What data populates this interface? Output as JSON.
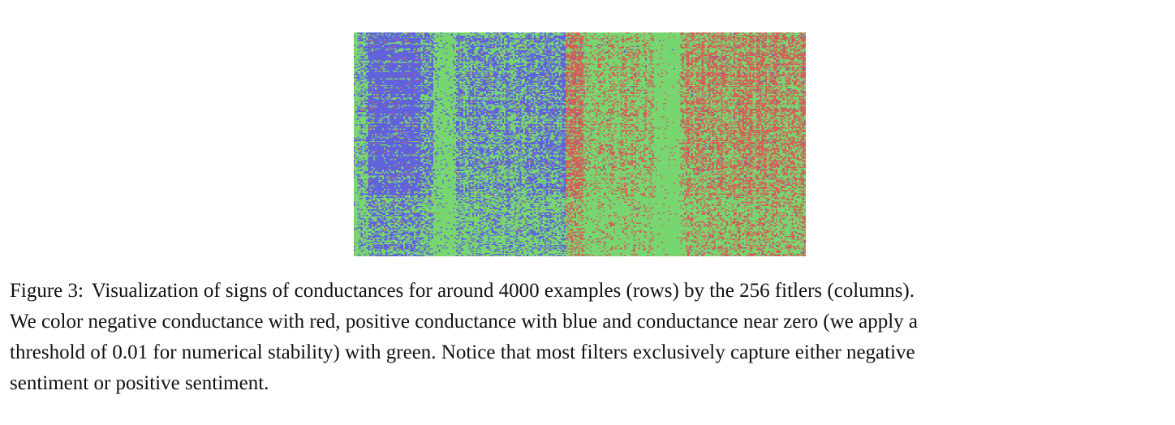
{
  "figure": {
    "label": "Figure 3:",
    "caption_lines": [
      "Visualization of signs of conductances for around 4000 examples (rows) by the 256 fitlers (columns).",
      "We color negative conductance with red, positive conductance with blue and conductance near zero (we apply a",
      "threshold of 0.01 for numerical stability) with green. Notice that most filters exclusively capture either negative",
      "sentiment or positive sentiment."
    ]
  },
  "chart_data": {
    "type": "heatmap",
    "rows": 4000,
    "columns": 256,
    "colors": {
      "negative": "#d0625a",
      "positive": "#6262dc",
      "near_zero": "#78d670"
    },
    "column_groups": [
      {
        "sign": "positive",
        "columns": [
          0,
          120
        ]
      },
      {
        "sign": "negative",
        "columns": [
          120,
          256
        ]
      }
    ]
  }
}
